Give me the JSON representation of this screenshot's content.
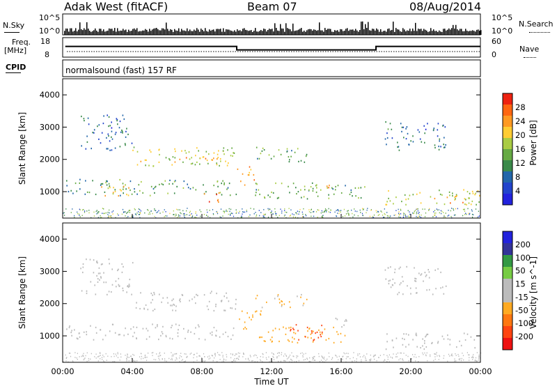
{
  "header": {
    "station": "Adak West (fitACF)",
    "beam": "Beam 07",
    "date": "08/Aug/2014"
  },
  "strip_labels": {
    "nsky": "N.Sky",
    "nsearch": "N.Search",
    "freq_line1": "Freq.",
    "freq_line2": "[MHz]",
    "nave": "Nave",
    "cpid": "CPID",
    "nsky_top": "10^5",
    "nsky_bottom": "10^0",
    "nsearch_top": "10^5",
    "nsearch_bottom": "10^0",
    "freq_top": "18",
    "freq_bottom": "8",
    "nave_top": "60",
    "nave_bottom": "0",
    "cpid_text": "normalsound (fast) 157 RF"
  },
  "colors": {
    "power_scale": [
      "#2222dd",
      "#2244cc",
      "#2266aa",
      "#3a8a4a",
      "#66aa44",
      "#aacc44",
      "#ffcc33",
      "#ff9922",
      "#ff6611",
      "#ee2211"
    ],
    "velocity_scale": [
      "#ee1111",
      "#ff4411",
      "#ff7711",
      "#ffaa22",
      "#bbbbbb",
      "#bbbbbb",
      "#77cc44",
      "#339944",
      "#333399",
      "#2222dd"
    ]
  },
  "chart_data": [
    {
      "type": "heatmap",
      "quantity": "power",
      "ylabel": "Slant Range [km]",
      "colorbar_label": "Power [dB]",
      "colorbar_ticks": [
        "4",
        "8",
        "12",
        "16",
        "20",
        "24",
        "28"
      ],
      "colorbar_range": [
        0,
        32
      ],
      "yticks": [
        "1000",
        "2000",
        "3000",
        "4000"
      ],
      "ylim": [
        180,
        4500
      ],
      "xlim": [
        0,
        24
      ],
      "echo_regions": [
        {
          "t0": 0.2,
          "t1": 10,
          "r0": 900,
          "r1": 1400,
          "val": 12
        },
        {
          "t0": 2,
          "t1": 4,
          "r0": 800,
          "r1": 1200,
          "val": 20
        },
        {
          "t0": 8,
          "t1": 9,
          "r0": 700,
          "r1": 1100,
          "val": 28
        },
        {
          "t0": 4,
          "t1": 10,
          "r0": 1800,
          "r1": 2400,
          "val": 18
        },
        {
          "t0": 6,
          "t1": 9.5,
          "r0": 1900,
          "r1": 2100,
          "val": 24
        },
        {
          "t0": 10,
          "t1": 11,
          "r0": 1200,
          "r1": 1800,
          "val": 24
        },
        {
          "t0": 11,
          "t1": 14,
          "r0": 1900,
          "r1": 2400,
          "val": 14
        },
        {
          "t0": 11,
          "t1": 17.5,
          "r0": 800,
          "r1": 1300,
          "val": 14
        },
        {
          "t0": 14,
          "t1": 15.5,
          "r0": 1050,
          "r1": 1300,
          "val": 22
        },
        {
          "t0": 18.5,
          "t1": 24,
          "r0": 600,
          "r1": 1100,
          "val": 18
        },
        {
          "t0": 22,
          "t1": 23.5,
          "r0": 600,
          "r1": 900,
          "val": 24
        },
        {
          "t0": 1,
          "t1": 4,
          "r0": 2300,
          "r1": 3400,
          "val": 8
        },
        {
          "t0": 18.5,
          "t1": 22,
          "r0": 2300,
          "r1": 3200,
          "val": 8
        }
      ]
    },
    {
      "type": "heatmap",
      "quantity": "velocity",
      "ylabel": "Slant Range [km]",
      "colorbar_label": "Velocity [m s^-1]",
      "colorbar_ticks": [
        "-200",
        "-100",
        "-50",
        "-15",
        "15",
        "50",
        "100",
        "200"
      ],
      "colorbar_range": [
        -250,
        250
      ],
      "yticks": [
        "1000",
        "2000",
        "3000",
        "4000"
      ],
      "ylim": [
        180,
        4500
      ],
      "xlim": [
        0,
        24
      ],
      "xticks": [
        "00:00",
        "04:00",
        "08:00",
        "12:00",
        "16:00",
        "20:00",
        "00:00"
      ],
      "xlabel": "Time UT",
      "echo_regions": [
        {
          "t0": 0.2,
          "t1": 10,
          "r0": 900,
          "r1": 1400,
          "val": 0
        },
        {
          "t0": 4,
          "t1": 10,
          "r0": 1800,
          "r1": 2400,
          "val": 0
        },
        {
          "t0": 10,
          "t1": 11.5,
          "r0": 1200,
          "r1": 1800,
          "val": -70
        },
        {
          "t0": 11,
          "t1": 14,
          "r0": 1900,
          "r1": 2300,
          "val": -60
        },
        {
          "t0": 11,
          "t1": 16.5,
          "r0": 800,
          "r1": 1300,
          "val": -80
        },
        {
          "t0": 13,
          "t1": 15,
          "r0": 850,
          "r1": 1400,
          "val": -180
        },
        {
          "t0": 15.5,
          "t1": 16.5,
          "r0": 1300,
          "r1": 1700,
          "val": 40
        },
        {
          "t0": 18.5,
          "t1": 24,
          "r0": 600,
          "r1": 1100,
          "val": 0
        },
        {
          "t0": 1,
          "t1": 4,
          "r0": 2300,
          "r1": 3400,
          "val": 0
        },
        {
          "t0": 18.5,
          "t1": 22,
          "r0": 2300,
          "r1": 3200,
          "val": 0
        }
      ]
    },
    {
      "type": "line",
      "quantity": "frequency",
      "ylabel": "Freq. [MHz]",
      "ylim": [
        8,
        18
      ],
      "x": [
        0,
        10,
        10,
        18,
        18,
        24
      ],
      "y": [
        13.5,
        13.5,
        11.7,
        11.7,
        13.5,
        13.5
      ]
    }
  ]
}
